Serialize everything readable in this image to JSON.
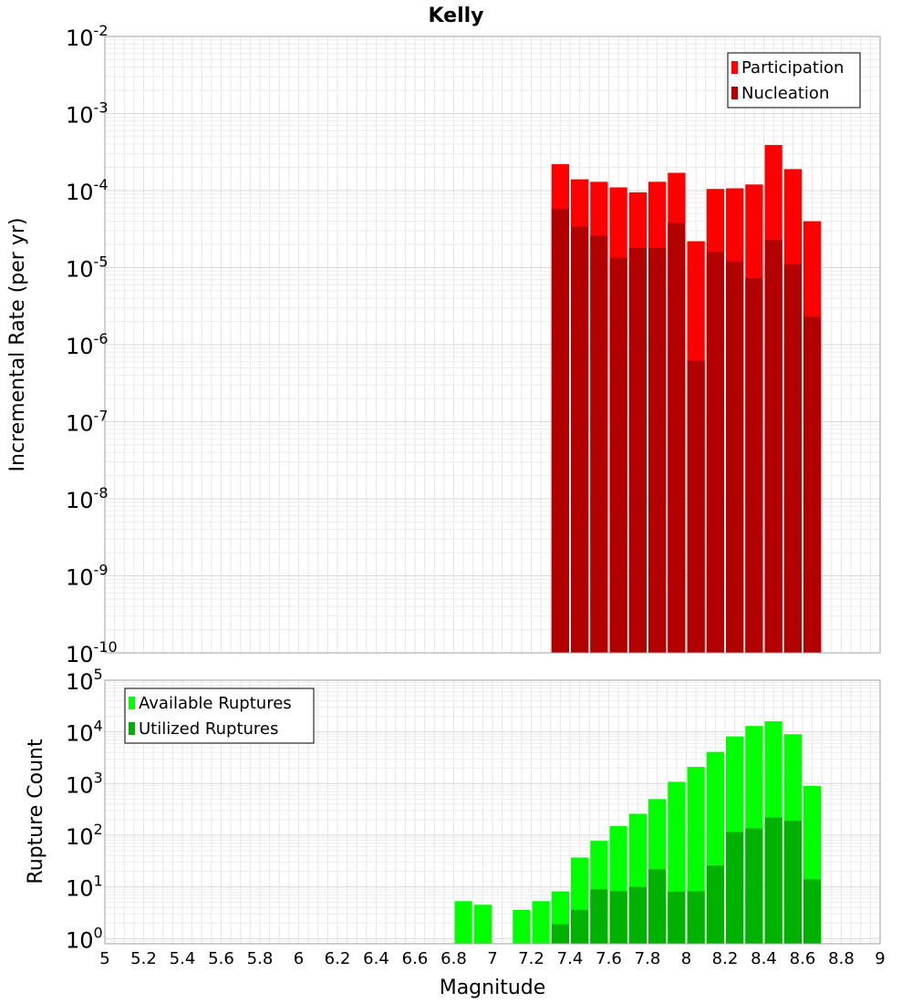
{
  "chart_data": {
    "type": "bar",
    "title": "Kelly",
    "xlabel": "Magnitude",
    "xlim": [
      5,
      9
    ],
    "xticks": [
      "5",
      "5.2",
      "5.4",
      "5.6",
      "5.8",
      "6",
      "6.2",
      "6.4",
      "6.6",
      "6.8",
      "7",
      "7.2",
      "7.4",
      "7.6",
      "7.8",
      "8",
      "8.2",
      "8.4",
      "8.6",
      "8.8",
      "9"
    ],
    "bin_width": 0.1,
    "grid": true,
    "panels": [
      {
        "ylabel": "Incremental Rate (per yr)",
        "yscale": "log",
        "ylim_exponents": [
          -10,
          -2
        ],
        "ytick_exponents": [
          -10,
          -9,
          -8,
          -7,
          -6,
          -5,
          -4,
          -3,
          -2
        ],
        "legend_position": "top-right",
        "x": [
          7.35,
          7.45,
          7.55,
          7.65,
          7.75,
          7.85,
          7.95,
          8.05,
          8.15,
          8.25,
          8.35,
          8.45,
          8.55,
          8.65
        ],
        "series": [
          {
            "name": "Participation",
            "color": "#ff0000",
            "values": [
              0.00022,
              0.00014,
              0.00013,
              0.00011,
              9.5e-05,
              0.00013,
              0.00017,
              2.2e-05,
              0.000105,
              0.000107,
              0.00012,
              0.00039,
              0.00019,
              4e-05
            ]
          },
          {
            "name": "Nucleation",
            "color": "#b20000",
            "values": [
              5.8e-05,
              3.4e-05,
              2.6e-05,
              1.35e-05,
              1.8e-05,
              1.8e-05,
              3.8e-05,
              6.2e-07,
              1.6e-05,
              1.2e-05,
              7.3e-06,
              2.3e-05,
              1.1e-05,
              2.3e-06
            ]
          }
        ]
      },
      {
        "ylabel": "Rupture Count",
        "yscale": "log",
        "ylim_exponents": [
          -0.1,
          5
        ],
        "ytick_exponents": [
          0,
          1,
          2,
          3,
          4,
          5
        ],
        "legend_position": "top-left",
        "x": [
          6.85,
          6.95,
          7.15,
          7.25,
          7.35,
          7.45,
          7.55,
          7.65,
          7.75,
          7.85,
          7.95,
          8.05,
          8.15,
          8.25,
          8.35,
          8.45,
          8.55,
          8.65
        ],
        "series": [
          {
            "name": "Available Ruptures",
            "color": "#00ff00",
            "values": [
              5.3,
              4.5,
              3.6,
              5.3,
              8.2,
              37,
              78,
              150,
              260,
              500,
              1080,
              2100,
              4100,
              8200,
              13000,
              16000,
              9000,
              900
            ]
          },
          {
            "name": "Utilized Ruptures",
            "color": "#00b200",
            "values": [
              0,
              0,
              0,
              0,
              1.9,
              3.6,
              9,
              8.3,
              10,
              22,
              8.1,
              8.2,
              26,
              115,
              135,
              220,
              190,
              14
            ]
          }
        ]
      }
    ]
  }
}
